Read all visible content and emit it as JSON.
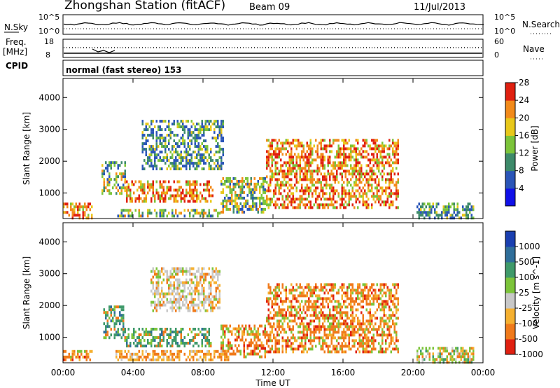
{
  "header": {
    "station": "Zhongshan Station (fitACF)",
    "beam": "Beam 09",
    "date": "11/Jul/2013"
  },
  "top_panels": {
    "nsky_label": "N.Sky",
    "nsky_tick_top": "10^5",
    "nsky_tick_bottom": "10^0",
    "nsearch_label": "N.Search",
    "nsearch_tick_top": "10^5",
    "nsearch_tick_bottom": "10^0",
    "freq_label": "Freq.",
    "freq_unit": "[MHz]",
    "freq_tick_top": "18",
    "freq_tick_bottom": "8",
    "nave_label": "Nave",
    "nave_tick_top": "60",
    "nave_tick_bottom": "0",
    "cpid_label": "CPID",
    "cpid_text": "normal (fast stereo) 153"
  },
  "chart_data": [
    {
      "type": "heatmap",
      "panel": "power",
      "ylabel": "Slant Range [km]",
      "yticks": [
        "1000",
        "2000",
        "3000",
        "4000"
      ],
      "ylim": [
        200,
        4600
      ],
      "xlim_hours": [
        0,
        24
      ],
      "colorbar": {
        "label": "Power [dB]",
        "ticks": [
          "4",
          "8",
          "12",
          "16",
          "20",
          "24",
          "28"
        ],
        "colors": [
          "#1010e8",
          "#2a55b8",
          "#3d8a6a",
          "#7cc43a",
          "#e8c81a",
          "#f28a1a",
          "#e02010"
        ]
      },
      "echo_regions": [
        {
          "t0": 0.0,
          "t1": 1.7,
          "r0": 250,
          "r1": 700,
          "power": "high"
        },
        {
          "t0": 2.2,
          "t1": 3.6,
          "r0": 1000,
          "r1": 2000,
          "power": "medium"
        },
        {
          "t0": 3.0,
          "t1": 9.0,
          "r0": 300,
          "r1": 500,
          "power": "medium"
        },
        {
          "t0": 3.6,
          "t1": 8.6,
          "r0": 700,
          "r1": 1400,
          "power": "high"
        },
        {
          "t0": 4.5,
          "t1": 9.2,
          "r0": 1800,
          "r1": 3300,
          "power": "low"
        },
        {
          "t0": 9.0,
          "t1": 11.6,
          "r0": 400,
          "r1": 1500,
          "power": "medium"
        },
        {
          "t0": 11.6,
          "t1": 19.2,
          "r0": 500,
          "r1": 2700,
          "power": "high"
        },
        {
          "t0": 20.2,
          "t1": 23.5,
          "r0": 250,
          "r1": 700,
          "power": "low"
        }
      ]
    },
    {
      "type": "heatmap",
      "panel": "velocity",
      "ylabel": "Slant Range [km]",
      "yticks": [
        "1000",
        "2000",
        "3000",
        "4000"
      ],
      "ylim": [
        200,
        4600
      ],
      "xlim_hours": [
        0,
        24
      ],
      "xlabel": "Time UT",
      "xticks": [
        "00:00",
        "04:00",
        "08:00",
        "12:00",
        "16:00",
        "20:00",
        "00:00"
      ],
      "colorbar": {
        "label": "Velocity [m s^-1]",
        "ticks": [
          "1000",
          "500",
          "100",
          "25",
          "-25",
          "-100",
          "-500",
          "-1000"
        ],
        "colors": [
          "#1a3fb0",
          "#2f6e9a",
          "#3f9a6a",
          "#7cc43a",
          "#c8c8c8",
          "#f5b030",
          "#f07a1a",
          "#e02010"
        ]
      },
      "echo_regions": [
        {
          "t0": 0.0,
          "t1": 1.7,
          "r0": 250,
          "r1": 600,
          "velocity": "-500 to -100"
        },
        {
          "t0": 2.3,
          "t1": 3.5,
          "r0": 1000,
          "r1": 2000,
          "velocity": "100 to 500"
        },
        {
          "t0": 3.0,
          "t1": 9.5,
          "r0": 300,
          "r1": 600,
          "velocity": "-100 to -25"
        },
        {
          "t0": 3.5,
          "t1": 8.5,
          "r0": 700,
          "r1": 1300,
          "velocity": "100 to 500"
        },
        {
          "t0": 5.0,
          "t1": 9.0,
          "r0": 1800,
          "r1": 3200,
          "velocity": "-25 to 25"
        },
        {
          "t0": 9.0,
          "t1": 11.6,
          "r0": 400,
          "r1": 1400,
          "velocity": "-500 to -100"
        },
        {
          "t0": 11.6,
          "t1": 19.2,
          "r0": 500,
          "r1": 2700,
          "velocity": "-500 to -100"
        },
        {
          "t0": 20.2,
          "t1": 23.5,
          "r0": 250,
          "r1": 700,
          "velocity": "25 to 100"
        }
      ]
    }
  ]
}
